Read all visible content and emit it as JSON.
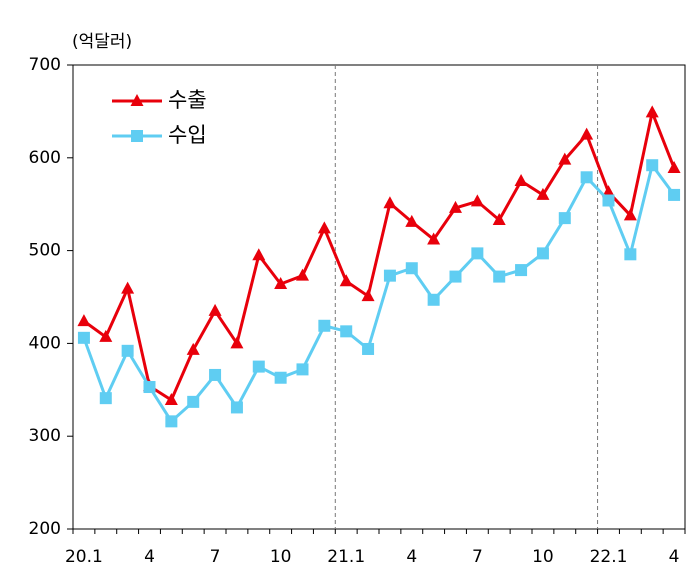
{
  "chart_data": {
    "type": "line",
    "y_label": "(억달러)",
    "categories": [
      "20.1",
      null,
      null,
      "4",
      null,
      null,
      "7",
      null,
      null,
      "10",
      null,
      null,
      "21.1",
      null,
      null,
      "4",
      null,
      null,
      "7",
      null,
      null,
      "10",
      null,
      null,
      "22.1",
      null,
      null,
      "4"
    ],
    "series": [
      {
        "name": "수출",
        "color": "#e8000b",
        "marker": "triangle",
        "values": [
          424,
          407,
          459,
          354,
          339,
          393,
          435,
          400,
          495,
          464,
          473,
          524,
          467,
          451,
          551,
          531,
          512,
          546,
          553,
          533,
          575,
          560,
          598,
          625,
          563,
          538,
          649,
          589
        ]
      },
      {
        "name": "수입",
        "color": "#5fcdf2",
        "marker": "square",
        "values": [
          406,
          341,
          392,
          353,
          316,
          337,
          366,
          331,
          375,
          363,
          372,
          419,
          413,
          394,
          473,
          481,
          447,
          472,
          497,
          472,
          479,
          497,
          535,
          579,
          554,
          496,
          592,
          560
        ]
      }
    ],
    "ylim": [
      200,
      700
    ],
    "yticks": [
      200,
      300,
      400,
      500,
      600,
      700
    ],
    "legend": "upper left"
  }
}
